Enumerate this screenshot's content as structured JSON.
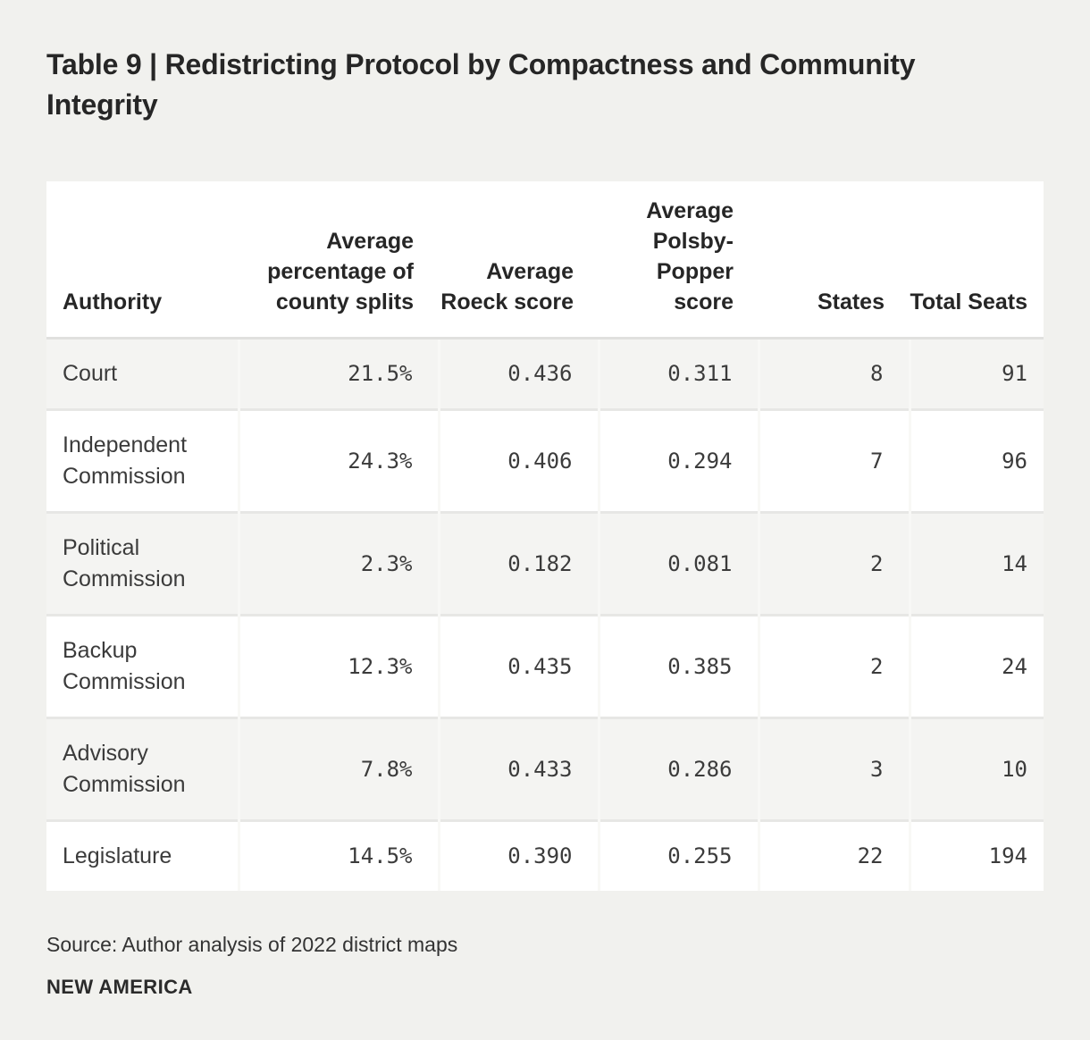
{
  "page": {
    "title": "Table 9 | Redistricting Protocol by Compactness and Community Integrity",
    "source": "Source: Author analysis of 2022 district maps",
    "brand": "NEW AMERICA"
  },
  "chart_data": {
    "type": "table",
    "title": "Table 9 | Redistricting Protocol by Compactness and Community Integrity",
    "columns": [
      "Authority",
      "Average percentage of county splits",
      "Average Roeck score",
      "Average Polsby-Popper score",
      "States",
      "Total Seats"
    ],
    "rows": [
      [
        "Court",
        "21.5%",
        "0.436",
        "0.311",
        "8",
        "91"
      ],
      [
        "Independent Commission",
        "24.3%",
        "0.406",
        "0.294",
        "7",
        "96"
      ],
      [
        "Political Commission",
        "2.3%",
        "0.182",
        "0.081",
        "2",
        "14"
      ],
      [
        "Backup Commission",
        "12.3%",
        "0.435",
        "0.385",
        "2",
        "24"
      ],
      [
        "Advisory Commission",
        "7.8%",
        "0.433",
        "0.286",
        "3",
        "10"
      ],
      [
        "Legislature",
        "14.5%",
        "0.390",
        "0.255",
        "22",
        "194"
      ]
    ],
    "source": "Author analysis of 2022 district maps",
    "layout": {
      "striped_rows": true,
      "numeric_alignment": "right",
      "header_alignment": "right-except-authority"
    },
    "colors": {
      "page_bg": "#f1f1ee",
      "row_stripe": "#f4f4f2",
      "row_white": "#ffffff",
      "header_rule": "#e0e0de",
      "row_rule": "#e7e7e5",
      "column_rule": "#f8f8f6",
      "text": "#3b3b3b",
      "heading": "#262626"
    }
  }
}
